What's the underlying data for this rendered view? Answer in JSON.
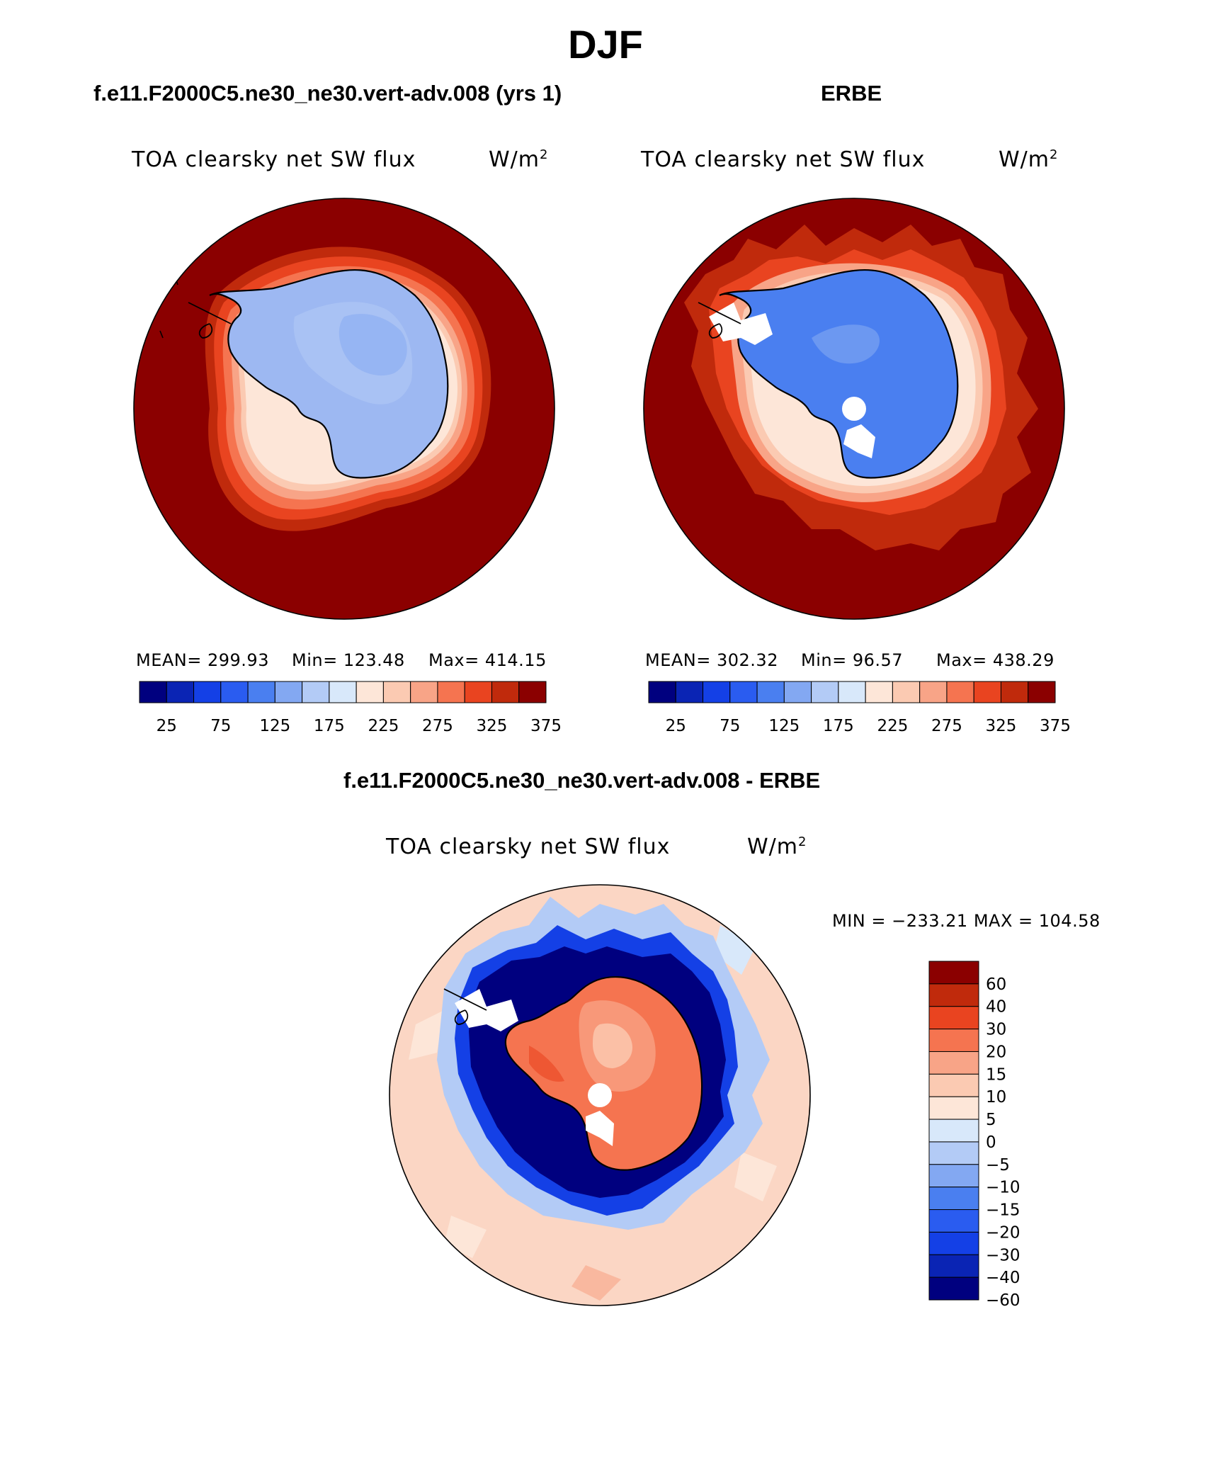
{
  "figure": {
    "season": "DJF",
    "panels": [
      {
        "title": "f.e11.F2000C5.ne30_ne30.vert-adv.008 (yrs 1)",
        "variable": "TOA clearsky net SW flux",
        "units_base": "W/m",
        "units_exp": "2",
        "stats": {
          "mean": "MEAN= 299.93",
          "min": "Min= 123.48",
          "max": "Max= 414.15"
        }
      },
      {
        "title": "ERBE",
        "variable": "TOA clearsky net SW flux",
        "units_base": "W/m",
        "units_exp": "2",
        "stats": {
          "mean": "MEAN= 302.32",
          "min": "Min=  96.57",
          "max": "Max= 438.29"
        }
      },
      {
        "title": "f.e11.F2000C5.ne30_ne30.vert-adv.008 - ERBE",
        "variable": "TOA clearsky net SW flux",
        "units_base": "W/m",
        "units_exp": "2",
        "stats": {
          "minmax": "MIN = −233.21  MAX = 104.58"
        }
      }
    ]
  },
  "chart_data": [
    {
      "type": "heatmap",
      "projection": "south polar stereographic",
      "title": "f.e11.F2000C5.ne30_ne30.vert-adv.008 (yrs 1)",
      "variable": "TOA clearsky net SW flux",
      "units": "W/m2",
      "mean": 299.93,
      "min": 123.48,
      "max": 414.15,
      "levels": [
        25,
        50,
        75,
        100,
        125,
        150,
        175,
        200,
        225,
        250,
        275,
        300,
        325,
        350,
        375
      ],
      "colorbar_tick_labels": [
        "25",
        "75",
        "125",
        "175",
        "225",
        "275",
        "325",
        "375"
      ],
      "colorbar_orientation": "horizontal"
    },
    {
      "type": "heatmap",
      "projection": "south polar stereographic",
      "title": "ERBE",
      "variable": "TOA clearsky net SW flux",
      "units": "W/m2",
      "mean": 302.32,
      "min": 96.57,
      "max": 438.29,
      "levels": [
        25,
        50,
        75,
        100,
        125,
        150,
        175,
        200,
        225,
        250,
        275,
        300,
        325,
        350,
        375
      ],
      "colorbar_tick_labels": [
        "25",
        "75",
        "125",
        "175",
        "225",
        "275",
        "325",
        "375"
      ],
      "colorbar_orientation": "horizontal"
    },
    {
      "type": "heatmap",
      "projection": "south polar stereographic",
      "title": "f.e11.F2000C5.ne30_ne30.vert-adv.008 - ERBE",
      "variable": "TOA clearsky net SW flux",
      "units": "W/m2",
      "min": -233.21,
      "max": 104.58,
      "levels": [
        -60,
        -40,
        -30,
        -20,
        -15,
        -10,
        -5,
        0,
        5,
        10,
        15,
        20,
        30,
        40,
        60
      ],
      "colorbar_tick_labels": [
        "60",
        "40",
        "30",
        "20",
        "15",
        "10",
        "5",
        "0",
        "−5",
        "−10",
        "−15",
        "−20",
        "−30",
        "−40",
        "−60"
      ],
      "colorbar_orientation": "vertical"
    }
  ],
  "colors": {
    "palette": [
      "#00007f",
      "#0a24b4",
      "#1440e6",
      "#2a5cf0",
      "#4a7ff0",
      "#83a8f2",
      "#b3cbf6",
      "#d8e8fa",
      "#fde6d8",
      "#fbcab2",
      "#f8a487",
      "#f57450",
      "#e94420",
      "#c02a0c",
      "#8b0000"
    ],
    "antarctica_model": "#9db8f2",
    "antarctica_obs": "#4a7ff0",
    "ocean_hot": "#8b0000",
    "coast": "#000000"
  }
}
